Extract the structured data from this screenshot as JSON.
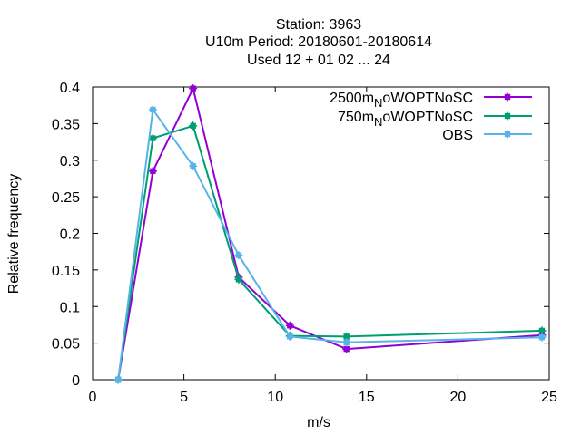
{
  "chart_data": {
    "type": "line",
    "title_lines": [
      "Station:     3963",
      "U10m  Period: 20180601-20180614",
      "Used  12 + 01 02 ... 24"
    ],
    "xlabel": "m/s",
    "ylabel": "Relative frequency",
    "xlim": [
      0,
      25
    ],
    "ylim": [
      0,
      0.4
    ],
    "x_ticks": [
      0,
      5,
      10,
      15,
      20,
      25
    ],
    "y_ticks": [
      0,
      0.05,
      0.1,
      0.15,
      0.2,
      0.25,
      0.3,
      0.35,
      0.4
    ],
    "x_tick_labels": [
      "0",
      "5",
      "10",
      "15",
      "20",
      "25"
    ],
    "y_tick_labels": [
      "0",
      "0.05",
      "0.1",
      "0.15",
      "0.2",
      "0.25",
      "0.3",
      "0.35",
      "0.4"
    ],
    "grid": false,
    "legend_position": "top-right",
    "series": [
      {
        "name_main": "2500m",
        "name_sub": "N",
        "name_rest": "oWOPTNoSC",
        "color": "#9400d3",
        "x": [
          1.4,
          3.3,
          5.5,
          8.0,
          10.8,
          13.9,
          24.6
        ],
        "y": [
          0.0,
          0.285,
          0.398,
          0.14,
          0.074,
          0.042,
          0.061
        ]
      },
      {
        "name_main": "750m",
        "name_sub": "N",
        "name_rest": "oWOPTNoSC",
        "color": "#009e73",
        "x": [
          1.4,
          3.3,
          5.5,
          8.0,
          10.8,
          13.9,
          24.6
        ],
        "y": [
          0.0,
          0.33,
          0.347,
          0.137,
          0.06,
          0.059,
          0.067
        ]
      },
      {
        "name_main": "OBS",
        "name_sub": "",
        "name_rest": "",
        "color": "#56b4e9",
        "x": [
          1.4,
          3.3,
          5.5,
          8.0,
          10.8,
          13.9,
          24.6
        ],
        "y": [
          0.0,
          0.369,
          0.292,
          0.17,
          0.059,
          0.051,
          0.058
        ]
      }
    ]
  }
}
